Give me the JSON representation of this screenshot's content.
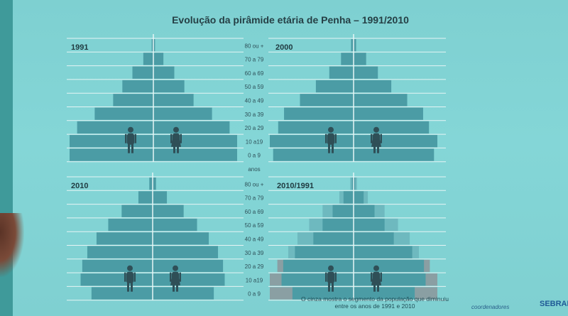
{
  "title": "Evolução da pirâmide etária de Penha – 1991/2010",
  "age_groups": [
    "0 a 9",
    "10 a19",
    "20 a 29",
    "30 a 39",
    "40 a 49",
    "50 a 59",
    "60 a 69",
    "70 a 79",
    "80 ou +"
  ],
  "axis_unit": "anos",
  "note": "O cinza mostra o segmento da população que diminuiu entre os anos de 1991 e 2010",
  "logo_text": "coordenadores",
  "logo_text_2": "SEBRAE",
  "colors": {
    "bar": "#4b9ca5",
    "bar_light": "#6eb9bf",
    "gray": "#8a9fa3",
    "line": "#e6f5f5",
    "figure": "#2f4f57"
  },
  "chart_data": [
    {
      "type": "bar",
      "label": "1991",
      "categories": [
        "0 a 9",
        "10 a19",
        "20 a 29",
        "30 a 39",
        "40 a 49",
        "50 a 59",
        "60 a 69",
        "70 a 79",
        "80 ou +"
      ],
      "values": [
        100,
        100,
        91,
        70,
        48,
        37,
        25,
        12,
        2
      ]
    },
    {
      "type": "bar",
      "label": "2000",
      "categories": [
        "0 a 9",
        "10 a19",
        "20 a 29",
        "30 a 39",
        "40 a 49",
        "50 a 59",
        "60 a 69",
        "70 a 79",
        "80 ou +"
      ],
      "values": [
        96,
        100,
        90,
        83,
        64,
        45,
        29,
        15,
        3
      ]
    },
    {
      "type": "bar",
      "label": "2010",
      "categories": [
        "0 a 9",
        "10 a19",
        "20 a 29",
        "30 a 39",
        "40 a 49",
        "50 a 59",
        "60 a 69",
        "70 a 79",
        "80 ou +"
      ],
      "values": [
        73,
        86,
        84,
        78,
        67,
        53,
        37,
        17,
        4
      ]
    },
    {
      "type": "bar",
      "label": "2010/1991",
      "categories": [
        "0 a 9",
        "10 a19",
        "20 a 29",
        "30 a 39",
        "40 a 49",
        "50 a 59",
        "60 a 69",
        "70 a 79",
        "80 ou +"
      ],
      "series": [
        {
          "name": "2010",
          "values": [
            73,
            86,
            84,
            78,
            67,
            53,
            37,
            17,
            4
          ]
        },
        {
          "name": "1991",
          "values": [
            100,
            100,
            91,
            70,
            48,
            37,
            25,
            12,
            2
          ]
        }
      ]
    }
  ]
}
